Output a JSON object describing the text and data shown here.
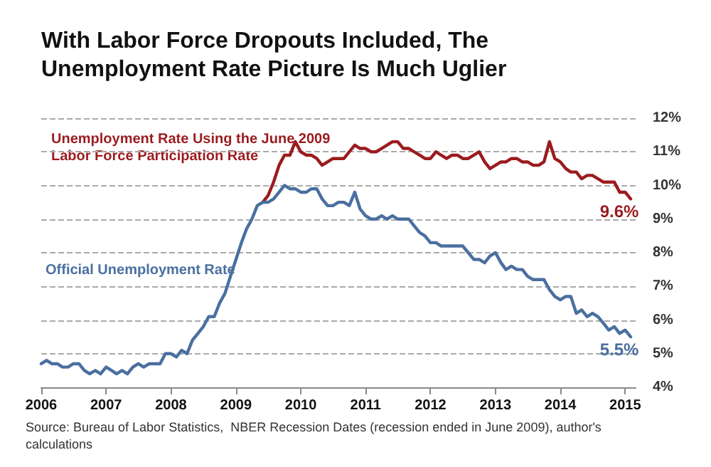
{
  "chart_data": {
    "type": "line",
    "title": "With Labor Force Dropouts Included, The\nUnemployment Rate Picture Is Much Uglier",
    "series": [
      {
        "name": "Unemployment Rate Using the June 2009\nLabor Force Participation Rate",
        "color": "#9b1b1e",
        "x": [
          "2009-06",
          "2009-07",
          "2009-08",
          "2009-09",
          "2009-10",
          "2009-11",
          "2009-12",
          "2010-01",
          "2010-02",
          "2010-03",
          "2010-04",
          "2010-05",
          "2010-06",
          "2010-07",
          "2010-08",
          "2010-09",
          "2010-10",
          "2010-11",
          "2010-12",
          "2011-01",
          "2011-02",
          "2011-03",
          "2011-04",
          "2011-05",
          "2011-06",
          "2011-07",
          "2011-08",
          "2011-09",
          "2011-10",
          "2011-11",
          "2011-12",
          "2012-01",
          "2012-02",
          "2012-03",
          "2012-04",
          "2012-05",
          "2012-06",
          "2012-07",
          "2012-08",
          "2012-09",
          "2012-10",
          "2012-11",
          "2012-12",
          "2013-01",
          "2013-02",
          "2013-03",
          "2013-04",
          "2013-05",
          "2013-06",
          "2013-07",
          "2013-08",
          "2013-09",
          "2013-10",
          "2013-11",
          "2013-12",
          "2014-01",
          "2014-02",
          "2014-03",
          "2014-04",
          "2014-05",
          "2014-06",
          "2014-07",
          "2014-08",
          "2014-09",
          "2014-10",
          "2014-11",
          "2014-12",
          "2015-01",
          "2015-02"
        ],
        "values": [
          9.5,
          9.7,
          10.1,
          10.6,
          10.9,
          10.9,
          11.3,
          11.0,
          10.9,
          10.9,
          10.8,
          10.6,
          10.7,
          10.8,
          10.8,
          10.8,
          11.0,
          11.2,
          11.1,
          11.1,
          11.0,
          11.0,
          11.1,
          11.2,
          11.3,
          11.3,
          11.1,
          11.1,
          11.0,
          10.9,
          10.8,
          10.8,
          11.0,
          10.9,
          10.8,
          10.9,
          10.9,
          10.8,
          10.8,
          10.9,
          11.0,
          10.7,
          10.5,
          10.6,
          10.7,
          10.7,
          10.8,
          10.8,
          10.7,
          10.7,
          10.6,
          10.6,
          10.7,
          11.3,
          10.8,
          10.7,
          10.5,
          10.4,
          10.4,
          10.2,
          10.3,
          10.3,
          10.2,
          10.1,
          10.1,
          10.1,
          9.8,
          9.8,
          9.6
        ]
      },
      {
        "name": "Official Unemployment Rate",
        "color": "#4a6fa0",
        "x": [
          "2006-01",
          "2006-02",
          "2006-03",
          "2006-04",
          "2006-05",
          "2006-06",
          "2006-07",
          "2006-08",
          "2006-09",
          "2006-10",
          "2006-11",
          "2006-12",
          "2007-01",
          "2007-02",
          "2007-03",
          "2007-04",
          "2007-05",
          "2007-06",
          "2007-07",
          "2007-08",
          "2007-09",
          "2007-10",
          "2007-11",
          "2007-12",
          "2008-01",
          "2008-02",
          "2008-03",
          "2008-04",
          "2008-05",
          "2008-06",
          "2008-07",
          "2008-08",
          "2008-09",
          "2008-10",
          "2008-11",
          "2008-12",
          "2009-01",
          "2009-02",
          "2009-03",
          "2009-04",
          "2009-05",
          "2009-06",
          "2009-07",
          "2009-08",
          "2009-09",
          "2009-10",
          "2009-11",
          "2009-12",
          "2010-01",
          "2010-02",
          "2010-03",
          "2010-04",
          "2010-05",
          "2010-06",
          "2010-07",
          "2010-08",
          "2010-09",
          "2010-10",
          "2010-11",
          "2010-12",
          "2011-01",
          "2011-02",
          "2011-03",
          "2011-04",
          "2011-05",
          "2011-06",
          "2011-07",
          "2011-08",
          "2011-09",
          "2011-10",
          "2011-11",
          "2011-12",
          "2012-01",
          "2012-02",
          "2012-03",
          "2012-04",
          "2012-05",
          "2012-06",
          "2012-07",
          "2012-08",
          "2012-09",
          "2012-10",
          "2012-11",
          "2012-12",
          "2013-01",
          "2013-02",
          "2013-03",
          "2013-04",
          "2013-05",
          "2013-06",
          "2013-07",
          "2013-08",
          "2013-09",
          "2013-10",
          "2013-11",
          "2013-12",
          "2014-01",
          "2014-02",
          "2014-03",
          "2014-04",
          "2014-05",
          "2014-06",
          "2014-07",
          "2014-08",
          "2014-09",
          "2014-10",
          "2014-11",
          "2014-12",
          "2015-01",
          "2015-02"
        ],
        "values": [
          4.7,
          4.8,
          4.7,
          4.7,
          4.6,
          4.6,
          4.7,
          4.7,
          4.5,
          4.4,
          4.5,
          4.4,
          4.6,
          4.5,
          4.4,
          4.5,
          4.4,
          4.6,
          4.7,
          4.6,
          4.7,
          4.7,
          4.7,
          5.0,
          5.0,
          4.9,
          5.1,
          5.0,
          5.4,
          5.6,
          5.8,
          6.1,
          6.1,
          6.5,
          6.8,
          7.3,
          7.8,
          8.3,
          8.7,
          9.0,
          9.4,
          9.5,
          9.5,
          9.6,
          9.8,
          10.0,
          9.9,
          9.9,
          9.8,
          9.8,
          9.9,
          9.9,
          9.6,
          9.4,
          9.4,
          9.5,
          9.5,
          9.4,
          9.8,
          9.3,
          9.1,
          9.0,
          9.0,
          9.1,
          9.0,
          9.1,
          9.0,
          9.0,
          9.0,
          8.8,
          8.6,
          8.5,
          8.3,
          8.3,
          8.2,
          8.2,
          8.2,
          8.2,
          8.2,
          8.0,
          7.8,
          7.8,
          7.7,
          7.9,
          8.0,
          7.7,
          7.5,
          7.6,
          7.5,
          7.5,
          7.3,
          7.2,
          7.2,
          7.2,
          6.9,
          6.7,
          6.6,
          6.7,
          6.7,
          6.2,
          6.3,
          6.1,
          6.2,
          6.1,
          5.9,
          5.7,
          5.8,
          5.6,
          5.7,
          5.5
        ]
      }
    ],
    "annotations": [
      {
        "text": "9.6%",
        "x": "2015-02",
        "y": 9.6
      },
      {
        "text": "5.5%",
        "x": "2015-02",
        "y": 5.5
      },
      "Source: Bureau of Labor Statistics,  NBER Recession Dates (recession ended in June 2009), author's\ncalculations"
    ],
    "xlim": [
      "2006-01",
      "2015-03"
    ],
    "xticks": [
      "2006",
      "2007",
      "2008",
      "2009",
      "2010",
      "2011",
      "2012",
      "2013",
      "2014",
      "2015"
    ],
    "ylim": [
      4,
      12
    ],
    "yticks": [
      {
        "value": 4,
        "label": "4%"
      },
      {
        "value": 5,
        "label": "5%"
      },
      {
        "value": 6,
        "label": "6%"
      },
      {
        "value": 7,
        "label": "7%"
      },
      {
        "value": 8,
        "label": "8%"
      },
      {
        "value": 9,
        "label": "9%"
      },
      {
        "value": 10,
        "label": "10%"
      },
      {
        "value": 11,
        "label": "11%"
      },
      {
        "value": 12,
        "label": "12%"
      }
    ],
    "grid": "y",
    "legend": false,
    "marker": "none",
    "line_style": "solid"
  }
}
